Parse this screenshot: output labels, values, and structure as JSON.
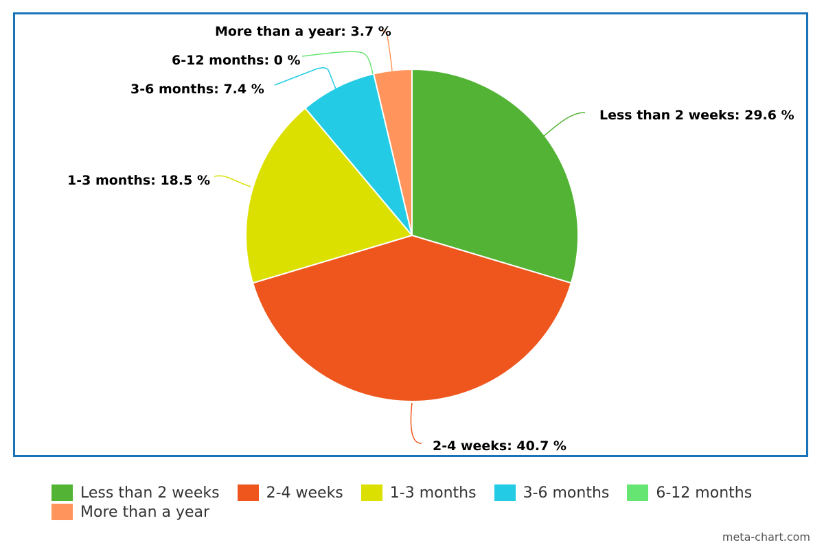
{
  "chart_data": {
    "type": "pie",
    "title": "",
    "slices": [
      {
        "label": "Less than 2 weeks",
        "value": 29.6,
        "display": "Less than 2 weeks: 29.6 %",
        "color": "#52b334"
      },
      {
        "label": "2-4 weeks",
        "value": 40.7,
        "display": "2-4 weeks: 40.7 %",
        "color": "#ee561d"
      },
      {
        "label": "1-3 months",
        "value": 18.5,
        "display": "1-3 months: 18.5 %",
        "color": "#dbe000"
      },
      {
        "label": "3-6 months",
        "value": 7.4,
        "display": "3-6 months: 7.4 %",
        "color": "#23cbe5"
      },
      {
        "label": "6-12 months",
        "value": 0,
        "display": "6-12 months: 0 %",
        "color": "#66e572"
      },
      {
        "label": "More than a year",
        "value": 3.7,
        "display": "More than a year: 3.7 %",
        "color": "#ff955c"
      }
    ],
    "legend_position": "bottom-left",
    "border_color": "#1a73b8"
  },
  "legend": {
    "items": [
      {
        "label": "Less than 2 weeks",
        "color": "#52b334"
      },
      {
        "label": "2-4 weeks",
        "color": "#ee561d"
      },
      {
        "label": "1-3 months",
        "color": "#dbe000"
      },
      {
        "label": "3-6 months",
        "color": "#23cbe5"
      },
      {
        "label": "6-12 months",
        "color": "#66e572"
      },
      {
        "label": "More than a year",
        "color": "#ff955c"
      }
    ]
  },
  "credit": "meta-chart.com"
}
